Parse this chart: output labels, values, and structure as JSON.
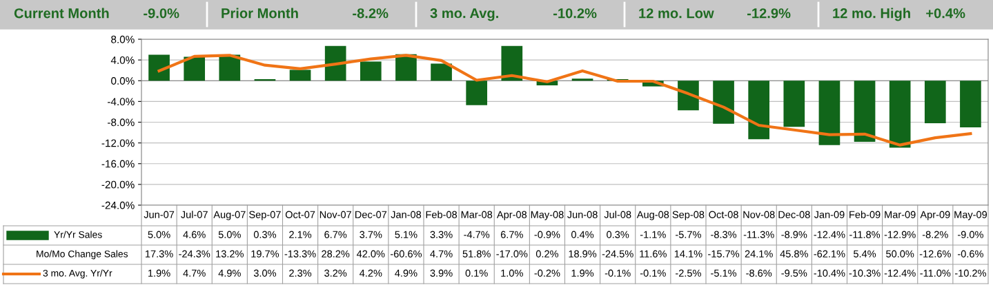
{
  "chart_data": {
    "type": "bar",
    "annotations": [
      "Current Month",
      "-9.0%",
      "Prior Month",
      "-8.2%",
      "3 mo. Avg.",
      "-10.2%",
      "12 mo. Low",
      "-12.9%",
      "12 mo. High",
      "+0.4%",
      "Mo/Mo Change Sales",
      "17.3%",
      "-24.3%",
      "13.2%",
      "19.7%",
      "-13.3%",
      "28.2%",
      "42.0%",
      "-60.6%",
      "4.7%",
      "51.8%",
      "-17.0%",
      "0.2%",
      "18.9%",
      "-24.5%",
      "11.6%",
      "14.1%",
      "-15.7%",
      "24.1%",
      "45.8%",
      "-62.1%",
      "5.4%",
      "50.0%",
      "-12.6%",
      "-0.6%"
    ],
    "categories": [
      "Jun-07",
      "Jul-07",
      "Aug-07",
      "Sep-07",
      "Oct-07",
      "Nov-07",
      "Dec-07",
      "Jan-08",
      "Feb-08",
      "Mar-08",
      "Apr-08",
      "May-08",
      "Jun-08",
      "Jul-08",
      "Aug-08",
      "Sep-08",
      "Oct-08",
      "Nov-08",
      "Dec-08",
      "Jan-09",
      "Feb-09",
      "Mar-09",
      "Apr-09",
      "May-09"
    ],
    "series": [
      {
        "name": "Yr/Yr Sales",
        "color": "#11661a",
        "values": [
          5.0,
          4.6,
          5.0,
          0.3,
          2.1,
          6.7,
          3.7,
          5.1,
          3.3,
          -4.7,
          6.7,
          -0.9,
          0.4,
          0.3,
          -1.1,
          -5.7,
          -8.3,
          -11.3,
          -8.9,
          -12.4,
          -11.8,
          -12.9,
          -8.2,
          -9.0
        ],
        "value_labels": [
          "5.0%",
          "4.6%",
          "5.0%",
          "0.3%",
          "2.1%",
          "6.7%",
          "3.7%",
          "5.1%",
          "3.3%",
          "-4.7%",
          "6.7%",
          "-0.9%",
          "0.4%",
          "0.3%",
          "-1.1%",
          "-5.7%",
          "-8.3%",
          "-11.3%",
          "-8.9%",
          "-12.4%",
          "-11.8%",
          "-12.9%",
          "-8.2%",
          "-9.0%"
        ]
      },
      {
        "name": "3 mo. Avg. Yr/Yr",
        "type": "line",
        "color": "#f07416",
        "values": [
          1.9,
          4.7,
          4.9,
          3.0,
          2.3,
          3.2,
          4.2,
          4.9,
          3.9,
          0.1,
          1.0,
          -0.2,
          1.9,
          -0.1,
          -0.1,
          -2.5,
          -5.1,
          -8.6,
          -9.5,
          -10.4,
          -10.3,
          -12.4,
          -11.0,
          -10.2
        ],
        "value_labels": [
          "1.9%",
          "4.7%",
          "4.9%",
          "3.0%",
          "2.3%",
          "3.2%",
          "4.2%",
          "4.9%",
          "3.9%",
          "0.1%",
          "1.0%",
          "-0.2%",
          "1.9%",
          "-0.1%",
          "-0.1%",
          "-2.5%",
          "-5.1%",
          "-8.6%",
          "-9.5%",
          "-10.4%",
          "-10.3%",
          "-12.4%",
          "-11.0%",
          "-10.2%"
        ]
      }
    ],
    "ylim": [
      -24,
      8
    ],
    "yticks": [
      {
        "value": -24,
        "label": "-24.0%"
      },
      {
        "value": -20,
        "label": "-20.0%"
      },
      {
        "value": -16,
        "label": "-16.0%"
      },
      {
        "value": -12,
        "label": "-12.0%"
      },
      {
        "value": -8,
        "label": "-8.0%"
      },
      {
        "value": -4,
        "label": "-4.0%"
      },
      {
        "value": 0,
        "label": "0.0%"
      },
      {
        "value": 4,
        "label": "4.0%"
      },
      {
        "value": 8,
        "label": "8.0%"
      }
    ],
    "grid": "y",
    "legend": "bottom left",
    "marker": "none",
    "line_style": "solid"
  }
}
